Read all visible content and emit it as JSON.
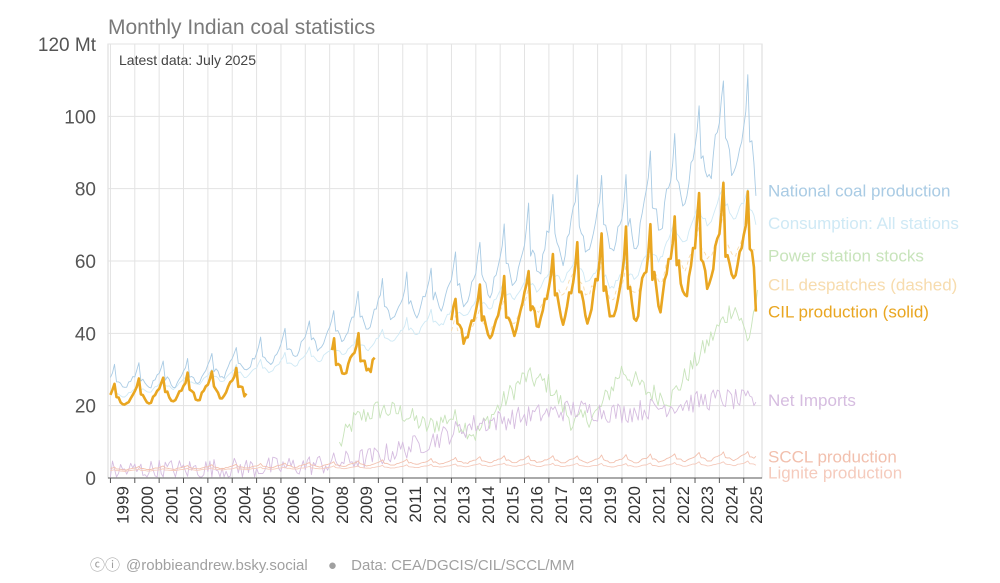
{
  "title": "Monthly Indian coal statistics",
  "annotation": "Latest data: July 2025",
  "footer": {
    "credit_icons": "ⓒⓘ",
    "credit": "@robbieandrew.bsky.social",
    "separator": "●",
    "source": "Data: CEA/DGCIS/CIL/SCCL/MM"
  },
  "chart_data": {
    "type": "line",
    "ylim": [
      0,
      120
    ],
    "y_ticks": [
      0,
      20,
      40,
      60,
      80,
      100,
      120
    ],
    "y_tick_labels": [
      "0",
      "20",
      "40",
      "60",
      "80",
      "100",
      "120 Mt"
    ],
    "x_ticks": [
      "1999",
      "2000",
      "2001",
      "2002",
      "2003",
      "2004",
      "2005",
      "2006",
      "2007",
      "2008",
      "2009",
      "2010",
      "2011",
      "2012",
      "2013",
      "2014",
      "2015",
      "2016",
      "2017",
      "2018",
      "2019",
      "2020",
      "2021",
      "2022",
      "2023",
      "2024",
      "2025"
    ],
    "xlim": [
      1998.9,
      2025.75
    ],
    "grid": true,
    "legend_placement": "right, labels at line ends",
    "series": [
      {
        "name": "National coal production",
        "color": "#a9cbe4",
        "seasonal": true,
        "anchors": [
          [
            1999,
            27
          ],
          [
            2002,
            28
          ],
          [
            2005,
            33
          ],
          [
            2008,
            40
          ],
          [
            2010,
            47
          ],
          [
            2012,
            50
          ],
          [
            2014,
            55
          ],
          [
            2016,
            62
          ],
          [
            2018,
            70
          ],
          [
            2020,
            70
          ],
          [
            2022,
            80
          ],
          [
            2024,
            95
          ],
          [
            2025.5,
            92
          ]
        ],
        "amplitude": [
          [
            1999,
            4
          ],
          [
            2005,
            5
          ],
          [
            2012,
            8
          ],
          [
            2018,
            14
          ],
          [
            2020,
            13
          ],
          [
            2025,
            17
          ]
        ],
        "span": [
          1999,
          2025.58
        ],
        "end_value": 78,
        "style": "solid",
        "width": 0.9
      },
      {
        "name": "Consumption: All stations",
        "color": "#cfe9f5",
        "seasonal": true,
        "anchors": [
          [
            1999,
            23
          ],
          [
            2005,
            30
          ],
          [
            2010,
            38
          ],
          [
            2014,
            48
          ],
          [
            2018,
            58
          ],
          [
            2020,
            55
          ],
          [
            2022,
            66
          ],
          [
            2024,
            76
          ],
          [
            2025.5,
            74
          ]
        ],
        "amplitude": [
          [
            1999,
            2
          ],
          [
            2010,
            3
          ],
          [
            2020,
            5
          ],
          [
            2025,
            6
          ]
        ],
        "span": [
          1999,
          2025.58
        ],
        "end_value": 70,
        "style": "solid",
        "width": 0.9
      },
      {
        "name": "Power station stocks",
        "color": "#c8e4bb",
        "seasonal": false,
        "anchors": [
          [
            2008.4,
            9
          ],
          [
            2009,
            16
          ],
          [
            2010,
            19
          ],
          [
            2011,
            18
          ],
          [
            2012,
            14
          ],
          [
            2013,
            17
          ],
          [
            2014,
            12
          ],
          [
            2015,
            20
          ],
          [
            2016,
            28
          ],
          [
            2017,
            26
          ],
          [
            2018,
            15
          ],
          [
            2019,
            18
          ],
          [
            2020,
            30
          ],
          [
            2021,
            24
          ],
          [
            2022,
            22
          ],
          [
            2023,
            32
          ],
          [
            2024,
            42
          ],
          [
            2024.6,
            48
          ],
          [
            2025.2,
            38
          ],
          [
            2025.58,
            52
          ]
        ],
        "noise": 3,
        "span": [
          2008.4,
          2025.58
        ],
        "end_value": 52,
        "style": "solid",
        "width": 0.9
      },
      {
        "name": "CIL despatches (dashed)",
        "color": "#f7dcae",
        "seasonal": true,
        "anchors": [
          [
            2013,
            40
          ],
          [
            2016,
            47
          ],
          [
            2018,
            55
          ],
          [
            2020,
            52
          ],
          [
            2022,
            60
          ],
          [
            2024,
            66
          ],
          [
            2025.5,
            64
          ]
        ],
        "amplitude": [
          [
            2013,
            4
          ],
          [
            2020,
            6
          ],
          [
            2025,
            7
          ]
        ],
        "span": [
          2013,
          2025.58
        ],
        "end_value": 63,
        "style": "dashed",
        "width": 0.9
      },
      {
        "name": "CIL production (solid)",
        "color": "#e9a621",
        "seasonal": true,
        "segments": [
          [
            1999,
            2004.6
          ],
          [
            2008.1,
            2009.9
          ],
          [
            2013,
            2025.58
          ]
        ],
        "anchors": [
          [
            1999,
            22
          ],
          [
            2004.5,
            26
          ],
          [
            2008,
            32
          ],
          [
            2010,
            34
          ],
          [
            2013,
            42
          ],
          [
            2015,
            45
          ],
          [
            2017,
            50
          ],
          [
            2019,
            52
          ],
          [
            2020,
            52
          ],
          [
            2022,
            58
          ],
          [
            2024,
            64
          ],
          [
            2025.5,
            62
          ]
        ],
        "amplitude": [
          [
            1999,
            4
          ],
          [
            2008,
            6
          ],
          [
            2013,
            8
          ],
          [
            2018,
            12
          ],
          [
            2019,
            15
          ],
          [
            2025,
            16
          ]
        ],
        "span": [
          1999,
          2025.58
        ],
        "end_value": 46,
        "style": "solid",
        "width": 2.6
      },
      {
        "name": "Net Imports",
        "color": "#d6bde0",
        "seasonal": false,
        "anchors": [
          [
            1999,
            2
          ],
          [
            2003,
            2.5
          ],
          [
            2006,
            3
          ],
          [
            2008,
            4
          ],
          [
            2010,
            6
          ],
          [
            2012,
            10
          ],
          [
            2014,
            15
          ],
          [
            2016,
            17
          ],
          [
            2018,
            19
          ],
          [
            2020,
            18
          ],
          [
            2022,
            20
          ],
          [
            2024,
            22
          ],
          [
            2025.58,
            21
          ]
        ],
        "noise": 3,
        "span": [
          1999,
          2025.58
        ],
        "end_value": 21,
        "style": "solid",
        "width": 0.9
      },
      {
        "name": "SCCL production",
        "color": "#f2c0ae",
        "seasonal": true,
        "anchors": [
          [
            1999,
            2.5
          ],
          [
            2005,
            3.2
          ],
          [
            2010,
            4
          ],
          [
            2015,
            5
          ],
          [
            2020,
            5
          ],
          [
            2025.5,
            6
          ]
        ],
        "amplitude": [
          [
            1999,
            0.5
          ],
          [
            2025,
            1.5
          ]
        ],
        "span": [
          1999,
          2025.58
        ],
        "end_value": 6,
        "style": "solid",
        "width": 0.9
      },
      {
        "name": "Lignite production",
        "color": "#f5cbbd",
        "seasonal": true,
        "anchors": [
          [
            1999,
            2
          ],
          [
            2005,
            2.6
          ],
          [
            2010,
            3
          ],
          [
            2015,
            3.6
          ],
          [
            2020,
            3.4
          ],
          [
            2025.5,
            4
          ]
        ],
        "amplitude": [
          [
            1999,
            0.3
          ],
          [
            2025,
            0.7
          ]
        ],
        "span": [
          1999,
          2025.58
        ],
        "end_value": 3.5,
        "style": "solid",
        "width": 0.9
      }
    ],
    "legend_labels": [
      {
        "text": "National coal production",
        "color": "#a9cbe4",
        "y": 79.5
      },
      {
        "text": "Consumption: All stations",
        "color": "#cfe9f5",
        "y": 70.5
      },
      {
        "text": "Power station stocks",
        "color": "#c8e4bb",
        "y": 61.5
      },
      {
        "text": "CIL despatches (dashed)",
        "color": "#f7dcae",
        "y": 53.5
      },
      {
        "text": "CIL production (solid)",
        "color": "#e9a621",
        "y": 46
      },
      {
        "text": "Net Imports",
        "color": "#d6bde0",
        "y": 21.5
      },
      {
        "text": "SCCL production",
        "color": "#f2c0ae",
        "y": 6
      },
      {
        "text": "Lignite production",
        "color": "#f5cbbd",
        "y": 1.5
      }
    ]
  }
}
